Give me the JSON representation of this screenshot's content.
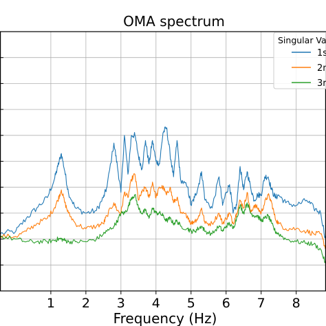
{
  "chart_data": {
    "type": "line",
    "title": "OMA spectrum",
    "xlabel": "Frequency (Hz)",
    "ylabel": "",
    "xlim": [
      -0.45,
      8.85
    ],
    "ylim": [
      0,
      10
    ],
    "xticks": [
      1,
      2,
      3,
      4,
      5,
      6,
      7,
      8
    ],
    "x_tick_labels": [
      "1",
      "2",
      "3",
      "4",
      "5",
      "6",
      "7",
      "8"
    ],
    "yticks": [
      1,
      2,
      3,
      4,
      5,
      6,
      7,
      8,
      9,
      10
    ],
    "grid": true,
    "legend": {
      "title": "Singular Va",
      "placement": "top-right",
      "entries": [
        "1s",
        "2n",
        "3r"
      ]
    },
    "series": [
      {
        "name": "1s",
        "color": "#1f77b4",
        "x": [
          -0.45,
          0.0,
          0.3,
          0.6,
          0.9,
          1.1,
          1.2,
          1.3,
          1.4,
          1.5,
          1.7,
          2.0,
          2.3,
          2.5,
          2.6,
          2.8,
          2.9,
          3.0,
          3.1,
          3.2,
          3.3,
          3.4,
          3.5,
          3.6,
          3.7,
          3.8,
          3.9,
          4.0,
          4.1,
          4.2,
          4.3,
          4.4,
          4.5,
          4.6,
          4.7,
          4.9,
          5.0,
          5.1,
          5.2,
          5.3,
          5.4,
          5.6,
          5.8,
          5.9,
          6.0,
          6.1,
          6.2,
          6.3,
          6.4,
          6.5,
          6.6,
          6.7,
          6.8,
          6.9,
          7.0,
          7.1,
          7.2,
          7.3,
          7.4,
          7.5,
          7.7,
          8.0,
          8.3,
          8.5,
          8.7,
          8.85
        ],
        "y": [
          2.2,
          2.3,
          2.8,
          3.2,
          3.6,
          4.3,
          4.8,
          5.3,
          4.6,
          3.8,
          3.2,
          3.0,
          3.1,
          3.6,
          4.0,
          5.7,
          4.8,
          3.8,
          6.0,
          4.5,
          6.0,
          6.0,
          5.2,
          4.7,
          5.8,
          4.9,
          5.8,
          5.0,
          4.9,
          6.1,
          6.3,
          5.3,
          4.4,
          5.8,
          4.3,
          4.0,
          3.3,
          3.6,
          4.0,
          4.6,
          3.5,
          3.2,
          4.4,
          3.3,
          3.8,
          4.1,
          3.0,
          3.3,
          4.8,
          3.9,
          4.6,
          4.0,
          3.5,
          3.7,
          3.7,
          4.4,
          4.4,
          3.9,
          3.6,
          3.7,
          3.4,
          3.3,
          3.5,
          3.2,
          3.0,
          1.9
        ]
      },
      {
        "name": "2n",
        "color": "#ff7f0e",
        "x": [
          -0.45,
          0.0,
          0.3,
          0.6,
          0.9,
          1.1,
          1.2,
          1.3,
          1.4,
          1.5,
          1.7,
          2.0,
          2.3,
          2.5,
          2.6,
          2.8,
          2.9,
          3.0,
          3.1,
          3.2,
          3.3,
          3.4,
          3.5,
          3.6,
          3.7,
          3.8,
          3.9,
          4.0,
          4.1,
          4.2,
          4.3,
          4.4,
          4.5,
          4.6,
          4.7,
          4.9,
          5.0,
          5.1,
          5.2,
          5.3,
          5.4,
          5.6,
          5.8,
          5.9,
          6.0,
          6.1,
          6.2,
          6.3,
          6.4,
          6.5,
          6.6,
          6.7,
          6.8,
          6.9,
          7.0,
          7.1,
          7.2,
          7.3,
          7.4,
          7.5,
          7.7,
          8.0,
          8.3,
          8.5,
          8.7,
          8.85
        ],
        "y": [
          2.1,
          2.1,
          2.3,
          2.6,
          2.8,
          3.2,
          3.5,
          3.9,
          3.4,
          3.0,
          2.6,
          2.4,
          2.5,
          2.6,
          2.9,
          3.4,
          3.1,
          3.0,
          3.8,
          3.6,
          4.3,
          4.5,
          3.5,
          3.8,
          4.0,
          3.6,
          4.2,
          3.6,
          4.0,
          4.0,
          3.7,
          4.0,
          3.4,
          3.6,
          3.0,
          2.9,
          2.6,
          2.7,
          2.8,
          3.2,
          2.6,
          2.6,
          3.0,
          2.6,
          2.8,
          3.0,
          2.6,
          3.0,
          3.5,
          3.2,
          3.8,
          3.0,
          3.3,
          3.2,
          3.0,
          3.4,
          3.7,
          3.4,
          2.8,
          2.6,
          2.4,
          2.4,
          2.3,
          2.2,
          2.2,
          1.6
        ]
      },
      {
        "name": "3r",
        "color": "#2ca02c",
        "x": [
          -0.45,
          0.0,
          0.3,
          0.6,
          0.9,
          1.1,
          1.2,
          1.3,
          1.4,
          1.5,
          1.7,
          2.0,
          2.3,
          2.5,
          2.6,
          2.8,
          2.9,
          3.0,
          3.1,
          3.2,
          3.3,
          3.4,
          3.5,
          3.6,
          3.7,
          3.8,
          3.9,
          4.0,
          4.1,
          4.2,
          4.3,
          4.4,
          4.5,
          4.6,
          4.7,
          4.9,
          5.0,
          5.1,
          5.2,
          5.3,
          5.4,
          5.6,
          5.8,
          5.9,
          6.0,
          6.1,
          6.2,
          6.3,
          6.4,
          6.5,
          6.6,
          6.7,
          6.8,
          6.9,
          7.0,
          7.1,
          7.2,
          7.3,
          7.4,
          7.5,
          7.7,
          8.0,
          8.3,
          8.5,
          8.7,
          8.85
        ],
        "y": [
          2.1,
          2.0,
          1.9,
          1.9,
          1.9,
          1.95,
          2.0,
          2.0,
          1.95,
          1.9,
          1.9,
          1.9,
          2.0,
          2.2,
          2.3,
          2.5,
          2.7,
          3.0,
          3.0,
          3.2,
          3.6,
          3.7,
          3.2,
          3.0,
          3.1,
          2.8,
          3.2,
          3.0,
          3.0,
          2.9,
          2.7,
          2.8,
          2.6,
          2.7,
          2.5,
          2.4,
          2.3,
          2.3,
          2.4,
          2.5,
          2.3,
          2.2,
          2.5,
          2.3,
          2.5,
          2.6,
          2.4,
          2.8,
          3.3,
          3.0,
          3.4,
          3.0,
          2.9,
          2.9,
          2.7,
          2.8,
          2.9,
          2.6,
          2.3,
          2.2,
          2.0,
          1.9,
          1.85,
          1.8,
          1.6,
          1.0
        ]
      }
    ]
  }
}
